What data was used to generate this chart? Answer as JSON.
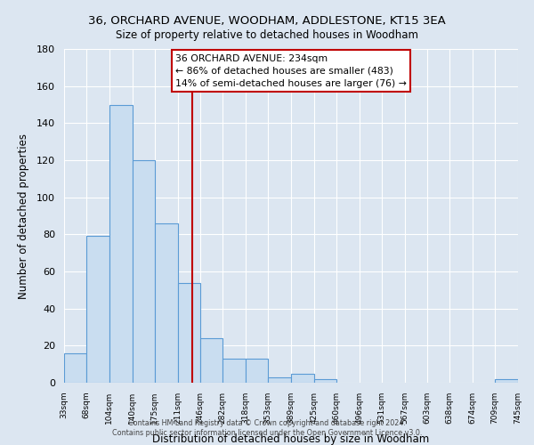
{
  "title": "36, ORCHARD AVENUE, WOODHAM, ADDLESTONE, KT15 3EA",
  "subtitle": "Size of property relative to detached houses in Woodham",
  "xlabel": "Distribution of detached houses by size in Woodham",
  "ylabel": "Number of detached properties",
  "bar_edges": [
    33,
    68,
    104,
    140,
    175,
    211,
    246,
    282,
    318,
    353,
    389,
    425,
    460,
    496,
    531,
    567,
    603,
    638,
    674,
    709,
    745
  ],
  "bar_heights": [
    16,
    79,
    150,
    120,
    86,
    54,
    24,
    13,
    13,
    3,
    5,
    2,
    0,
    0,
    0,
    0,
    0,
    0,
    0,
    2
  ],
  "bar_color": "#c9ddf0",
  "bar_edge_color": "#5b9bd5",
  "red_line_x": 234,
  "annotation_title": "36 ORCHARD AVENUE: 234sqm",
  "annotation_line1": "← 86% of detached houses are smaller (483)",
  "annotation_line2": "14% of semi-detached houses are larger (76) →",
  "annotation_box_facecolor": "#ffffff",
  "annotation_box_edgecolor": "#c00000",
  "red_line_color": "#c00000",
  "bg_color": "#dce6f1",
  "ylim": [
    0,
    180
  ],
  "yticks": [
    0,
    20,
    40,
    60,
    80,
    100,
    120,
    140,
    160,
    180
  ],
  "footer1": "Contains HM Land Registry data © Crown copyright and database right 2024.",
  "footer2": "Contains public sector information licensed under the Open Government Licence v3.0."
}
